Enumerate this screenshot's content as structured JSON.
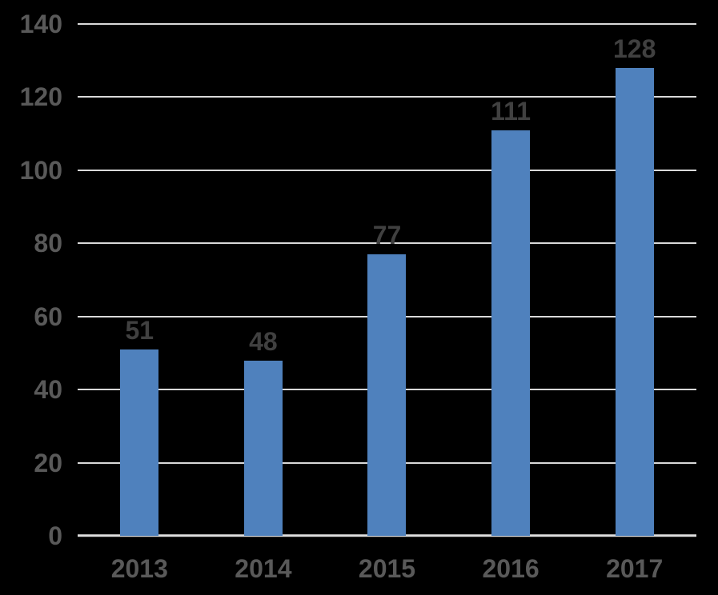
{
  "chart_data": {
    "type": "bar",
    "title": "",
    "xlabel": "",
    "ylabel": "",
    "categories": [
      "2013",
      "2014",
      "2015",
      "2016",
      "2017"
    ],
    "values": [
      51,
      48,
      77,
      111,
      128
    ],
    "data_labels": [
      "51",
      "48",
      "77",
      "111",
      "128"
    ],
    "ylim": [
      0,
      140
    ],
    "yticks": [
      0,
      20,
      40,
      60,
      80,
      100,
      120,
      140
    ],
    "grid": true,
    "legend": false,
    "colors": {
      "bar": "#4F81BD",
      "gridline": "#D9D9D9",
      "axis_line": "#DEDEDE",
      "axis_labels": "#595959",
      "data_labels": "#404040",
      "background": "#000000"
    }
  }
}
